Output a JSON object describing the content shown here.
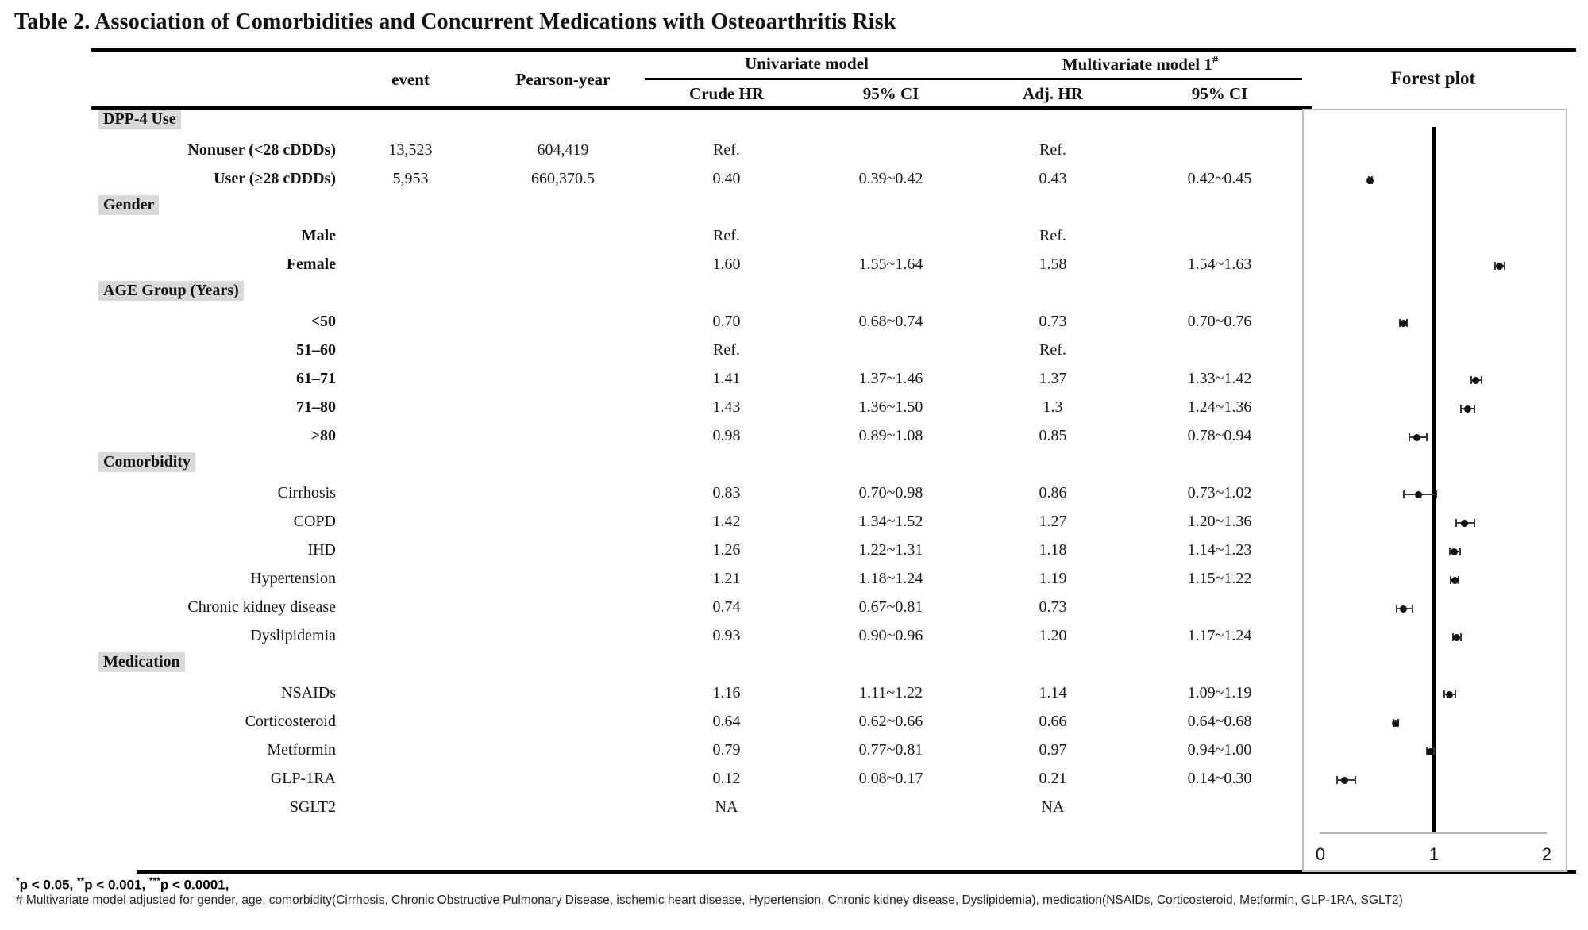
{
  "title": "Table 2. Association of Comorbidities and Concurrent Medications with Osteoarthritis Risk",
  "header": {
    "event": "event",
    "person_year": "Pearson-year",
    "group_univariate": "Univariate model",
    "group_multivariate": "Multivariate model 1",
    "group_multivariate_sup": "#",
    "sub_crude_hr": "Crude HR",
    "sub_ci_univariate": "95% CI",
    "sub_adj_hr": "Adj. HR",
    "sub_ci_multivariate": "95% CI",
    "forest": "Forest plot"
  },
  "table": {
    "rows": [
      {
        "type": "section",
        "label": "DPP-4 Use"
      },
      {
        "type": "item-bold",
        "label": "Nonuser  (<28  cDDDs)",
        "event": "13,523",
        "py": "604,419",
        "crude": "Ref.",
        "ci1": "",
        "adj": "Ref.",
        "ci2": ""
      },
      {
        "type": "item-bold",
        "label": "User  (≥28  cDDDs)",
        "event": "5,953",
        "py": "660,370.5",
        "crude": "0.40",
        "ci1": "0.39~0.42",
        "adj": "0.43",
        "ci2": "0.42~0.45",
        "plot": {
          "hr": 0.43,
          "lo": 0.42,
          "hi": 0.45
        }
      },
      {
        "type": "section",
        "label": "Gender"
      },
      {
        "type": "item-bold",
        "label": "Male",
        "event": "",
        "py": "",
        "crude": "Ref.",
        "ci1": "",
        "adj": "Ref.",
        "ci2": ""
      },
      {
        "type": "item-bold",
        "label": "Female",
        "event": "",
        "py": "",
        "crude": "1.60",
        "ci1": "1.55~1.64",
        "adj": "1.58",
        "ci2": "1.54~1.63",
        "plot": {
          "hr": 1.58,
          "lo": 1.54,
          "hi": 1.63
        }
      },
      {
        "type": "section",
        "label": "AGE Group (Years)"
      },
      {
        "type": "item-bold",
        "label": "<50",
        "event": "",
        "py": "",
        "crude": "0.70",
        "ci1": "0.68~0.74",
        "adj": "0.73",
        "ci2": "0.70~0.76",
        "plot": {
          "hr": 0.73,
          "lo": 0.7,
          "hi": 0.76
        }
      },
      {
        "type": "item-bold",
        "label": "51–60",
        "event": "",
        "py": "",
        "crude": "Ref.",
        "ci1": "",
        "adj": "Ref.",
        "ci2": ""
      },
      {
        "type": "item-bold",
        "label": "61–71",
        "event": "",
        "py": "",
        "crude": "1.41",
        "ci1": "1.37~1.46",
        "adj": "1.37",
        "ci2": "1.33~1.42",
        "plot": {
          "hr": 1.37,
          "lo": 1.33,
          "hi": 1.42
        }
      },
      {
        "type": "item-bold",
        "label": "71–80",
        "event": "",
        "py": "",
        "crude": "1.43",
        "ci1": "1.36~1.50",
        "adj": "1.3",
        "ci2": "1.24~1.36",
        "plot": {
          "hr": 1.3,
          "lo": 1.24,
          "hi": 1.36
        }
      },
      {
        "type": "item-bold",
        "label": ">80",
        "event": "",
        "py": "",
        "crude": "0.98",
        "ci1": "0.89~1.08",
        "adj": "0.85",
        "ci2": "0.78~0.94",
        "plot": {
          "hr": 0.85,
          "lo": 0.78,
          "hi": 0.94
        }
      },
      {
        "type": "section",
        "label": "Comorbidity"
      },
      {
        "type": "item",
        "label": "Cirrhosis",
        "event": "",
        "py": "",
        "crude": "0.83",
        "ci1": "0.70~0.98",
        "adj": "0.86",
        "ci2": "0.73~1.02",
        "plot": {
          "hr": 0.86,
          "lo": 0.73,
          "hi": 1.02
        }
      },
      {
        "type": "item",
        "label": "COPD",
        "event": "",
        "py": "",
        "crude": "1.42",
        "ci1": "1.34~1.52",
        "adj": "1.27",
        "ci2": "1.20~1.36",
        "plot": {
          "hr": 1.27,
          "lo": 1.2,
          "hi": 1.36
        }
      },
      {
        "type": "item",
        "label": "IHD",
        "event": "",
        "py": "",
        "crude": "1.26",
        "ci1": "1.22~1.31",
        "adj": "1.18",
        "ci2": "1.14~1.23",
        "plot": {
          "hr": 1.18,
          "lo": 1.14,
          "hi": 1.23
        }
      },
      {
        "type": "item",
        "label": "Hypertension",
        "event": "",
        "py": "",
        "crude": "1.21",
        "ci1": "1.18~1.24",
        "adj": "1.19",
        "ci2": "1.15~1.22",
        "plot": {
          "hr": 1.19,
          "lo": 1.15,
          "hi": 1.22
        }
      },
      {
        "type": "item",
        "label": "Chronic kidney disease",
        "event": "",
        "py": "",
        "crude": "0.74",
        "ci1": "0.67~0.81",
        "adj": "0.73",
        "ci2": "",
        "plot": {
          "hr": 0.73,
          "lo": 0.67,
          "hi": 0.81
        }
      },
      {
        "type": "item",
        "label": "Dyslipidemia",
        "event": "",
        "py": "",
        "crude": "0.93",
        "ci1": "0.90~0.96",
        "adj": "1.20",
        "ci2": "1.17~1.24",
        "plot": {
          "hr": 1.2,
          "lo": 1.17,
          "hi": 1.24
        }
      },
      {
        "type": "section",
        "label": "Medication"
      },
      {
        "type": "item",
        "label": "NSAIDs",
        "event": "",
        "py": "",
        "crude": "1.16",
        "ci1": "1.11~1.22",
        "adj": "1.14",
        "ci2": "1.09~1.19",
        "plot": {
          "hr": 1.14,
          "lo": 1.09,
          "hi": 1.19
        }
      },
      {
        "type": "item",
        "label": "Corticosteroid",
        "event": "",
        "py": "",
        "crude": "0.64",
        "ci1": "0.62~0.66",
        "adj": "0.66",
        "ci2": "0.64~0.68",
        "plot": {
          "hr": 0.66,
          "lo": 0.64,
          "hi": 0.68
        }
      },
      {
        "type": "item",
        "label": "Metformin",
        "event": "",
        "py": "",
        "crude": "0.79",
        "ci1": "0.77~0.81",
        "adj": "0.97",
        "ci2": "0.94~1.00",
        "plot": {
          "hr": 0.97,
          "lo": 0.94,
          "hi": 1.0
        }
      },
      {
        "type": "item",
        "label": "GLP-1RA",
        "event": "",
        "py": "",
        "crude": "0.12",
        "ci1": "0.08~0.17",
        "adj": "0.21",
        "ci2": "0.14~0.30",
        "plot": {
          "hr": 0.21,
          "lo": 0.14,
          "hi": 0.3
        }
      },
      {
        "type": "item",
        "label": "SGLT2",
        "event": "",
        "py": "",
        "crude": "NA",
        "ci1": "",
        "adj": "NA",
        "ci2": ""
      }
    ]
  },
  "forest_axis": {
    "tick0": "0",
    "tick1": "1",
    "tick2": "2"
  },
  "footnotes": {
    "sig_segments": [
      {
        "sup": "*",
        "text": "p < 0.05, "
      },
      {
        "sup": "**",
        "text": "p < 0.001, "
      },
      {
        "sup": "***",
        "text": "p < 0.0001,"
      }
    ],
    "adjust": "# Multivariate model adjusted for gender, age, comorbidity(Cirrhosis, Chronic Obstructive Pulmonary Disease, ischemic heart disease, Hypertension, Chronic kidney disease, Dyslipidemia), medication(NSAIDs, Corticosteroid, Metformin, GLP-1RA, SGLT2)"
  },
  "colors": {
    "section_bg": "#d9d9d9",
    "rule": "#000000",
    "axis_gray": "#b3b3b3",
    "plot_border": "#bdbdbd",
    "marker": "#111111"
  },
  "chart_data": {
    "type": "forest",
    "title": "Forest plot",
    "xlim": [
      0,
      2
    ],
    "ref_line": 1,
    "x_ticks": [
      0,
      1,
      2
    ],
    "grid": false,
    "points": [
      {
        "label": "User (≥28 cDDDs)",
        "hr": 0.43,
        "ci": [
          0.42,
          0.45
        ]
      },
      {
        "label": "Female",
        "hr": 1.58,
        "ci": [
          1.54,
          1.63
        ]
      },
      {
        "label": "<50",
        "hr": 0.73,
        "ci": [
          0.7,
          0.76
        ]
      },
      {
        "label": "61–71",
        "hr": 1.37,
        "ci": [
          1.33,
          1.42
        ]
      },
      {
        "label": "71–80",
        "hr": 1.3,
        "ci": [
          1.24,
          1.36
        ]
      },
      {
        "label": ">80",
        "hr": 0.85,
        "ci": [
          0.78,
          0.94
        ]
      },
      {
        "label": "Cirrhosis",
        "hr": 0.86,
        "ci": [
          0.73,
          1.02
        ]
      },
      {
        "label": "COPD",
        "hr": 1.27,
        "ci": [
          1.2,
          1.36
        ]
      },
      {
        "label": "IHD",
        "hr": 1.18,
        "ci": [
          1.14,
          1.23
        ]
      },
      {
        "label": "Hypertension",
        "hr": 1.19,
        "ci": [
          1.15,
          1.22
        ]
      },
      {
        "label": "Chronic kidney disease",
        "hr": 0.73,
        "ci": [
          0.67,
          0.81
        ]
      },
      {
        "label": "Dyslipidemia",
        "hr": 1.2,
        "ci": [
          1.17,
          1.24
        ]
      },
      {
        "label": "NSAIDs",
        "hr": 1.14,
        "ci": [
          1.09,
          1.19
        ]
      },
      {
        "label": "Corticosteroid",
        "hr": 0.66,
        "ci": [
          0.64,
          0.68
        ]
      },
      {
        "label": "Metformin",
        "hr": 0.97,
        "ci": [
          0.94,
          1.0
        ]
      },
      {
        "label": "GLP-1RA",
        "hr": 0.21,
        "ci": [
          0.14,
          0.3
        ]
      }
    ]
  }
}
